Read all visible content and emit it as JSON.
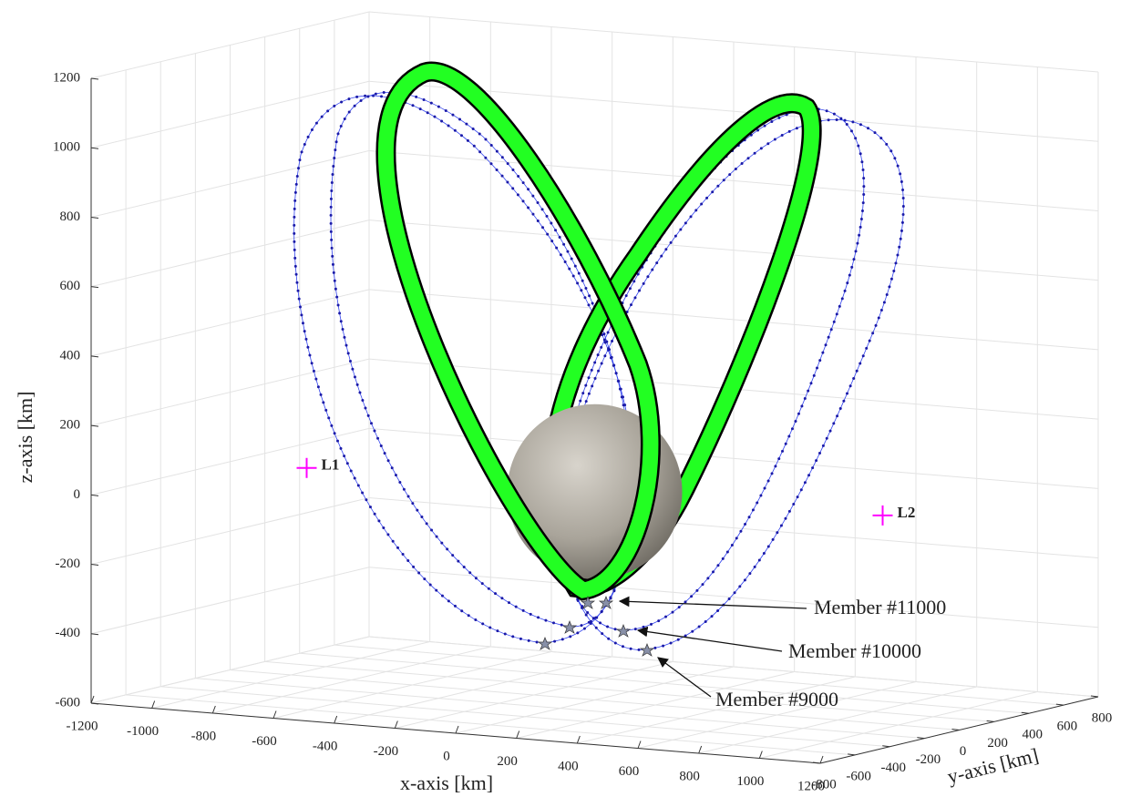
{
  "chart_data": {
    "type": "orbit3d",
    "xlabel": "x-axis [km]",
    "ylabel": "y-axis [km]",
    "zlabel": "z-axis [km]",
    "xlim": [
      -1200,
      1200
    ],
    "ylim": [
      -800,
      800
    ],
    "zlim": [
      -600,
      1200
    ],
    "xticks": [
      -1200,
      -1000,
      -800,
      -600,
      -400,
      -200,
      0,
      200,
      400,
      600,
      800,
      1000,
      1200
    ],
    "yticks": [
      -800,
      -600,
      -400,
      -200,
      0,
      200,
      400,
      600,
      800
    ],
    "zticks": [
      -600,
      -400,
      -200,
      0,
      200,
      400,
      600,
      800,
      1000,
      1200
    ],
    "grid": true,
    "points": [
      {
        "name": "L1",
        "x": -948,
        "y": 0,
        "z": 0,
        "color": "#ff00ff"
      },
      {
        "name": "L2",
        "x": 948,
        "y": 0,
        "z": 0,
        "color": "#ff00ff"
      }
    ],
    "body": {
      "x": 0,
      "y": 0,
      "z": 0,
      "radius": 252
    },
    "annotations": [
      "Member #11000",
      "Member #10000",
      "Member #9000"
    ]
  }
}
